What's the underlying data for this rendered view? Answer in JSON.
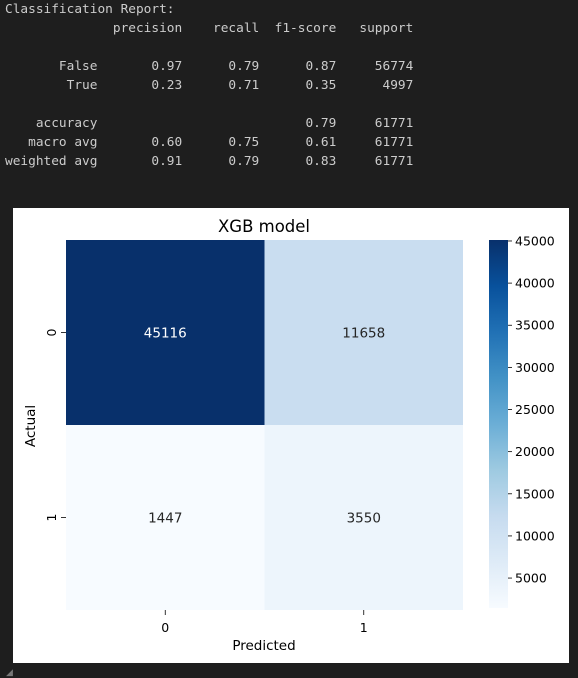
{
  "report": {
    "lines": [
      "Classification Report:",
      "              precision    recall  f1-score   support",
      "",
      "       False       0.97      0.79      0.87     56774",
      "        True       0.23      0.71      0.35      4997",
      "",
      "    accuracy                           0.79     61771",
      "   macro avg       0.60      0.75      0.61     61771",
      "weighted avg       0.91      0.79      0.83     61771"
    ]
  },
  "chart_data": {
    "type": "heatmap",
    "title": "XGB model",
    "xlabel": "Predicted",
    "ylabel": "Actual",
    "x_categories": [
      "0",
      "1"
    ],
    "y_categories": [
      "0",
      "1"
    ],
    "values": [
      [
        45116,
        11658
      ],
      [
        1447,
        3550
      ]
    ],
    "colormap": "Blues",
    "colorbar": {
      "ticks": [
        5000,
        10000,
        15000,
        20000,
        25000,
        30000,
        35000,
        40000,
        45000
      ],
      "range": [
        1447,
        45116
      ]
    }
  },
  "ui": {
    "scroll_caret": "◢"
  }
}
